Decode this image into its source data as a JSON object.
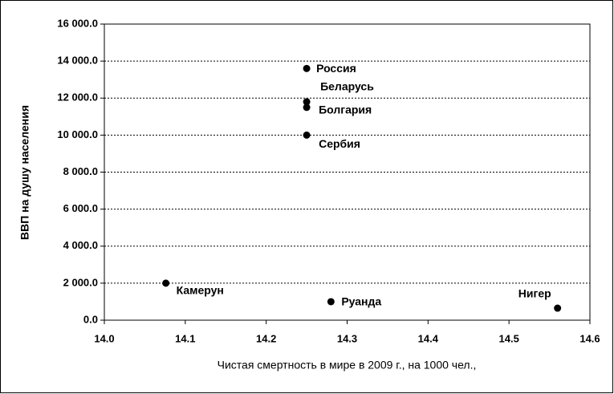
{
  "chart_data": {
    "type": "scatter",
    "xlabel": "Чистая смертность  в мире в 2009 г.,  на 1000 чел.,",
    "ylabel": "ВВП на душу населения",
    "point_labels": [
      "Россия",
      "Беларусь",
      "Болгария",
      "Сербия",
      "Камерун",
      "Руанда",
      "Нигер"
    ],
    "x": [
      14.25,
      14.25,
      14.25,
      14.25,
      14.076,
      14.28,
      14.56
    ],
    "values": [
      13600,
      11800,
      11500,
      10000,
      2000,
      1000,
      650
    ],
    "color": "#000000",
    "xlim": [
      14.0,
      14.6
    ],
    "xticks": [
      {
        "value": 14.0,
        "label": "14.0"
      },
      14.1,
      14.2,
      14.3,
      14.4,
      14.5,
      14.6
    ],
    "ylim": [
      0,
      16000
    ],
    "yticks": [
      {
        "value": 0,
        "label": "0.0"
      },
      {
        "value": 2000,
        "label": "2 000.0"
      },
      {
        "value": 4000,
        "label": "4 000.0"
      },
      {
        "value": 6000,
        "label": "6 000.0"
      },
      {
        "value": 8000,
        "label": "8 000.0"
      },
      {
        "value": 10000,
        "label": "10 000.0"
      },
      {
        "value": 12000,
        "label": "12 000.0"
      },
      {
        "value": 14000,
        "label": "14 000.0"
      },
      {
        "value": 16000,
        "label": "16 000.0"
      }
    ],
    "grid": true
  }
}
